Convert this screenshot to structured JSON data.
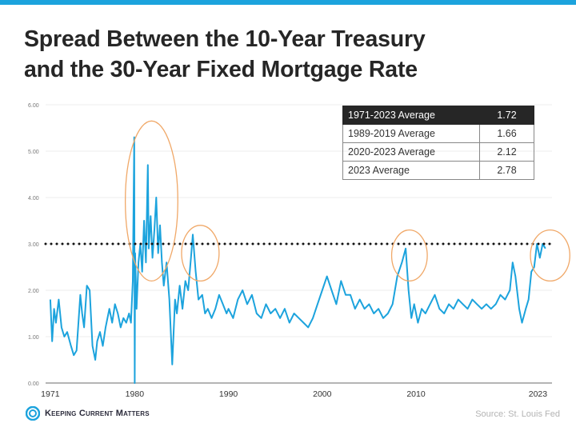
{
  "title_line1": "Spread Between the 10-Year Treasury",
  "title_line2": "and the 30-Year Fixed Mortgage Rate",
  "table": {
    "rows": [
      {
        "label": "1971-2023 Average",
        "value": "1.72",
        "header": true
      },
      {
        "label": "1989-2019 Average",
        "value": "1.66"
      },
      {
        "label": "2020-2023 Average",
        "value": "2.12"
      },
      {
        "label": "2023 Average",
        "value": "2.78"
      }
    ]
  },
  "footer": {
    "logo_text": "Keeping Current Matters",
    "source": "Source: St. Louis Fed"
  },
  "colors": {
    "line": "#1ca3dd",
    "highlight": "#f0a868",
    "reference": "#111111",
    "topbar": "#1ca3dd"
  },
  "chart_data": {
    "type": "line",
    "title": "Spread Between the 10-Year Treasury and the 30-Year Fixed Mortgage Rate",
    "xlabel": "",
    "ylabel": "",
    "xlim": [
      1970.5,
      2024.5
    ],
    "ylim": [
      0,
      6
    ],
    "grid": true,
    "x_ticks": [
      "1971",
      "1980",
      "1990",
      "2000",
      "2010",
      "2023"
    ],
    "y_ticks": [
      "0.00",
      "1.00",
      "2.00",
      "3.00",
      "4.00",
      "5.00",
      "6.00"
    ],
    "reference_line": 3.0,
    "series": [
      {
        "x": [
          1971.0,
          1971.2,
          1971.4,
          1971.6,
          1971.9,
          1972.2,
          1972.5,
          1972.8,
          1973.2,
          1973.5,
          1973.8,
          1974.2,
          1974.4,
          1974.6,
          1974.9,
          1975.2,
          1975.5,
          1975.8,
          1976.0,
          1976.3,
          1976.6,
          1976.9,
          1977.3,
          1977.6,
          1977.9,
          1978.2,
          1978.5,
          1978.8,
          1979.1,
          1979.4,
          1979.6,
          1979.8,
          1979.95,
          1980.0,
          1980.05,
          1980.2,
          1980.4,
          1980.6,
          1980.8,
          1981.0,
          1981.2,
          1981.4,
          1981.5,
          1981.7,
          1981.9,
          1982.1,
          1982.3,
          1982.5,
          1982.7,
          1982.9,
          1983.1,
          1983.4,
          1983.7,
          1984.0,
          1984.3,
          1984.5,
          1984.8,
          1985.1,
          1985.4,
          1985.7,
          1986.0,
          1986.2,
          1986.5,
          1986.8,
          1987.2,
          1987.5,
          1987.8,
          1988.2,
          1988.6,
          1989.0,
          1989.4,
          1989.8,
          1990.0,
          1990.5,
          1991.0,
          1991.5,
          1992.0,
          1992.5,
          1993.0,
          1993.5,
          1994.0,
          1994.5,
          1995.0,
          1995.5,
          1996.0,
          1996.5,
          1997.0,
          1997.5,
          1998.0,
          1998.5,
          1999.0,
          1999.5,
          2000.0,
          2000.5,
          2001.0,
          2001.5,
          2002.0,
          2002.5,
          2003.0,
          2003.5,
          2004.0,
          2004.5,
          2005.0,
          2005.5,
          2006.0,
          2006.5,
          2007.0,
          2007.5,
          2008.0,
          2008.5,
          2008.9,
          2009.2,
          2009.5,
          2009.8,
          2010.2,
          2010.6,
          2011.0,
          2011.5,
          2012.0,
          2012.5,
          2013.0,
          2013.5,
          2014.0,
          2014.5,
          2015.0,
          2015.5,
          2016.0,
          2016.5,
          2017.0,
          2017.5,
          2018.0,
          2018.5,
          2019.0,
          2019.5,
          2020.0,
          2020.3,
          2020.6,
          2021.0,
          2021.3,
          2021.7,
          2022.0,
          2022.3,
          2022.6,
          2022.9,
          2023.2,
          2023.5,
          2023.8
        ],
        "values": [
          1.8,
          0.9,
          1.6,
          1.3,
          1.8,
          1.2,
          1.0,
          1.1,
          0.8,
          0.6,
          0.7,
          1.9,
          1.5,
          1.2,
          2.1,
          2.0,
          0.8,
          0.5,
          0.9,
          1.1,
          0.8,
          1.2,
          1.6,
          1.3,
          1.7,
          1.5,
          1.2,
          1.4,
          1.3,
          1.5,
          1.3,
          2.2,
          5.3,
          0.0,
          2.8,
          1.6,
          2.6,
          3.0,
          2.4,
          3.5,
          2.6,
          4.7,
          2.9,
          3.6,
          2.7,
          3.3,
          4.0,
          2.8,
          3.4,
          2.6,
          2.1,
          2.6,
          1.8,
          0.4,
          1.8,
          1.5,
          2.1,
          1.6,
          2.2,
          2.0,
          2.7,
          3.2,
          2.4,
          1.8,
          1.9,
          1.5,
          1.6,
          1.4,
          1.6,
          1.9,
          1.7,
          1.5,
          1.6,
          1.4,
          1.8,
          2.0,
          1.7,
          1.9,
          1.5,
          1.4,
          1.7,
          1.5,
          1.6,
          1.4,
          1.6,
          1.3,
          1.5,
          1.4,
          1.3,
          1.2,
          1.4,
          1.7,
          2.0,
          2.3,
          2.0,
          1.7,
          2.2,
          1.9,
          1.9,
          1.6,
          1.8,
          1.6,
          1.7,
          1.5,
          1.6,
          1.4,
          1.5,
          1.7,
          2.3,
          2.6,
          2.9,
          2.0,
          1.4,
          1.7,
          1.3,
          1.6,
          1.5,
          1.7,
          1.9,
          1.6,
          1.5,
          1.7,
          1.6,
          1.8,
          1.7,
          1.6,
          1.8,
          1.7,
          1.6,
          1.7,
          1.6,
          1.7,
          1.9,
          1.8,
          2.0,
          2.6,
          2.3,
          1.6,
          1.3,
          1.6,
          1.8,
          2.4,
          2.5,
          3.0,
          2.7,
          3.0,
          2.9
        ]
      }
    ],
    "annotations": [
      {
        "type": "ellipse",
        "x_range": [
          1979.0,
          1984.6
        ],
        "y_range": [
          2.2,
          5.65
        ]
      },
      {
        "type": "ellipse",
        "x_range": [
          1985.0,
          1989.0
        ],
        "y_range": [
          2.2,
          3.4
        ]
      },
      {
        "type": "ellipse",
        "x_range": [
          2007.4,
          2011.2
        ],
        "y_range": [
          2.2,
          3.3
        ]
      },
      {
        "type": "ellipse",
        "x_range": [
          2022.2,
          2026.4
        ],
        "y_range": [
          2.2,
          3.3
        ]
      }
    ]
  }
}
